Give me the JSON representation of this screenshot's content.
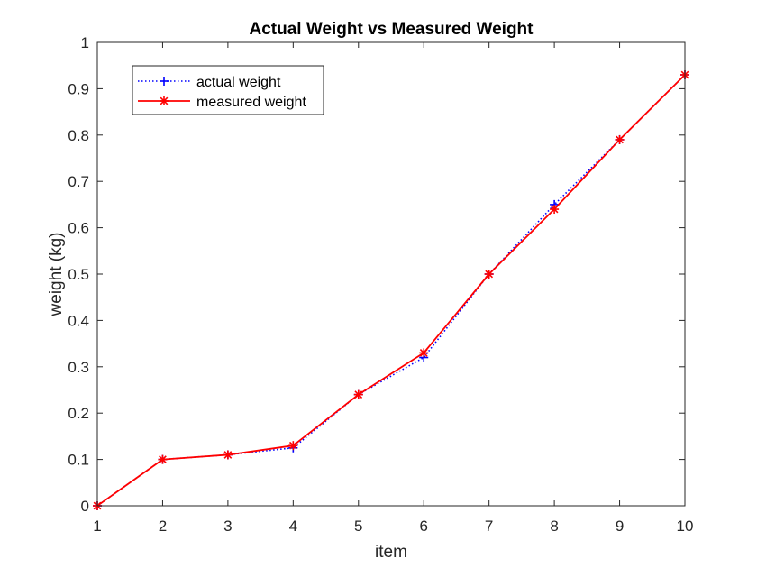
{
  "chart_data": {
    "type": "line",
    "title": "Actual Weight vs Measured Weight",
    "xlabel": "item",
    "ylabel": "weight (kg)",
    "xlim": [
      1,
      10
    ],
    "ylim": [
      0,
      1
    ],
    "x": [
      1,
      2,
      3,
      4,
      5,
      6,
      7,
      8,
      9,
      10
    ],
    "xticks": [
      "1",
      "2",
      "3",
      "4",
      "5",
      "6",
      "7",
      "8",
      "9",
      "10"
    ],
    "yticks": [
      "0",
      "0.1",
      "0.2",
      "0.3",
      "0.4",
      "0.5",
      "0.6",
      "0.7",
      "0.8",
      "0.9",
      "1"
    ],
    "grid": false,
    "legend_position": "top-left",
    "series": [
      {
        "name": "actual weight",
        "values": [
          0,
          0.1,
          0.11,
          0.125,
          0.24,
          0.32,
          0.5,
          0.65,
          0.79,
          0.93
        ],
        "color": "#0000ff",
        "line_style": "dotted",
        "marker": "plus"
      },
      {
        "name": "measured weight",
        "values": [
          0,
          0.1,
          0.11,
          0.13,
          0.24,
          0.33,
          0.5,
          0.64,
          0.79,
          0.93
        ],
        "color": "#ff0000",
        "line_style": "solid",
        "marker": "asterisk"
      }
    ]
  }
}
